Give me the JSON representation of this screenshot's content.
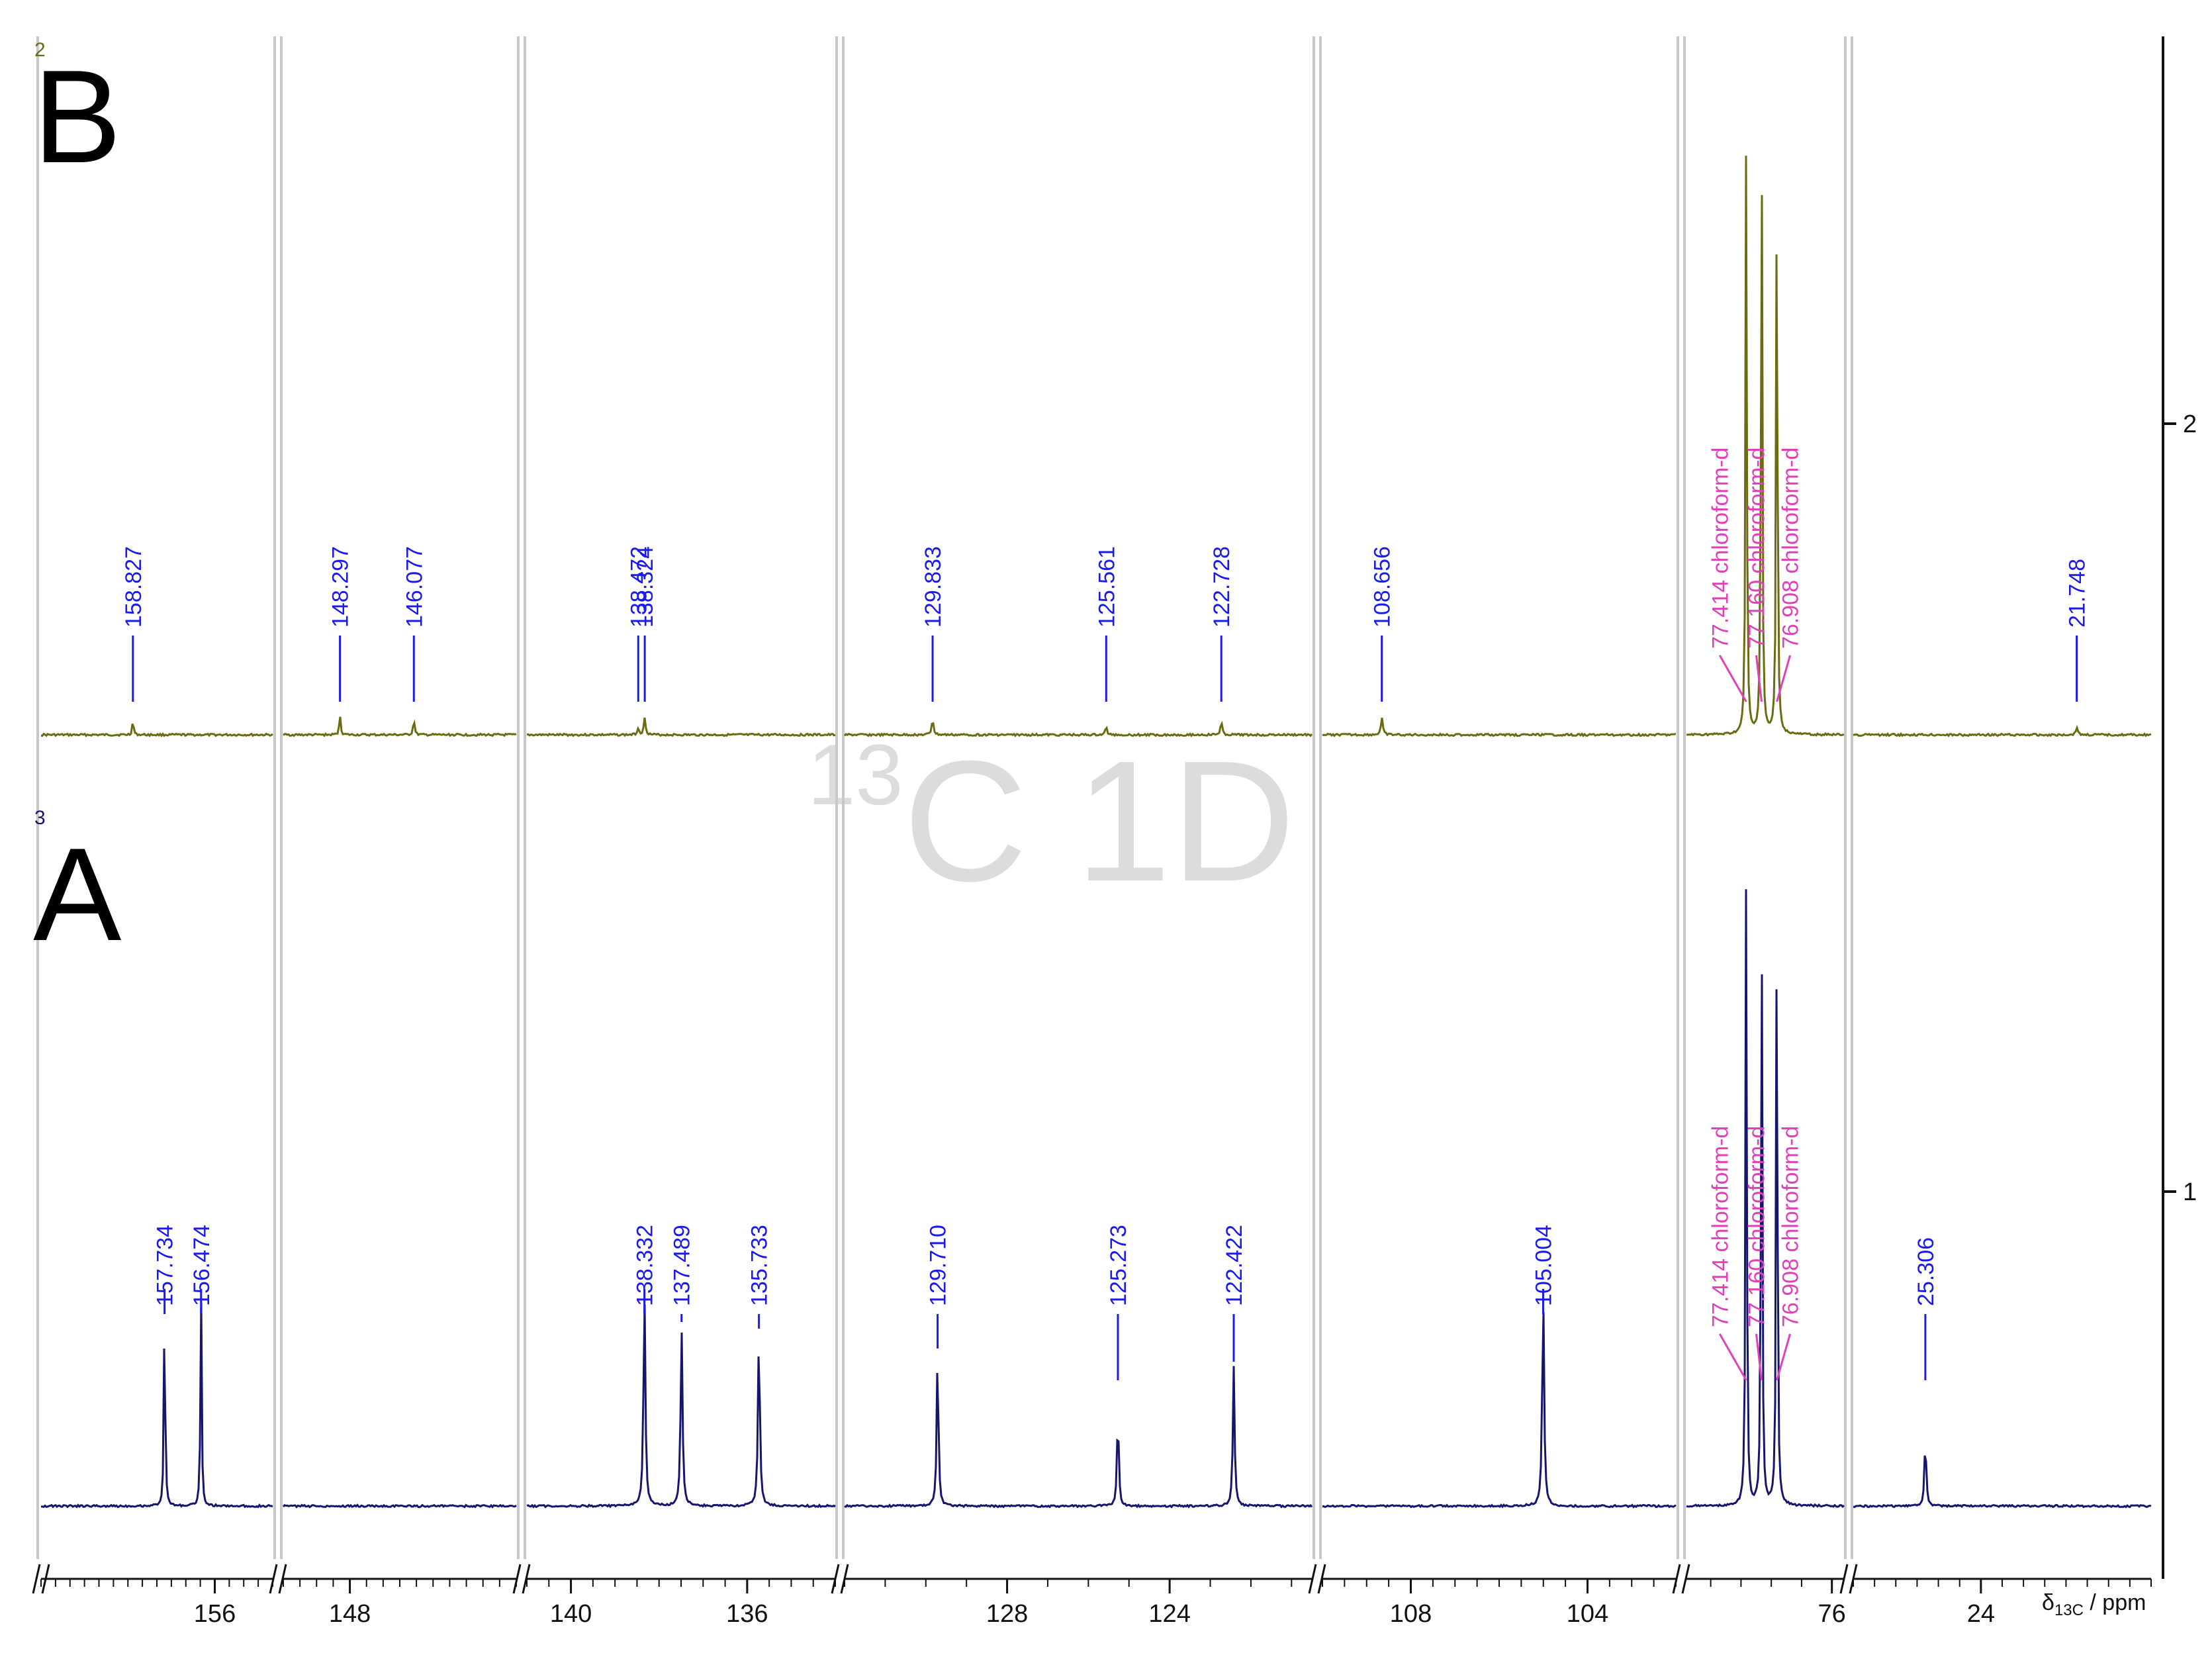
{
  "watermark": "13C 1D",
  "watermark_sup": "13",
  "watermark_main": "C 1D",
  "axis_label": "δ13C / ppm",
  "axis_label_main": "δ",
  "axis_label_sub": "13C",
  "axis_label_unit": " / ppm",
  "right_axis_ticks": [
    {
      "label": "2"
    },
    {
      "label": "1"
    }
  ],
  "colors": {
    "spectrum_B": "#6b6b12",
    "spectrum_A": "#16166e",
    "peak_label": "#1a1aee",
    "solvent_label": "#e040b8",
    "segment_divider": "#c8c8c8",
    "watermark": "#dcdcdc"
  },
  "chart_data": {
    "type": "line",
    "title": "",
    "xlabel": "δ13C / ppm",
    "ylabel": "",
    "x_reversed": true,
    "broken_axis": true,
    "segments": [
      {
        "range": [
          162,
          154
        ],
        "ticks": [
          156
        ]
      },
      {
        "range": [
          150,
          143
        ],
        "ticks": [
          148
        ]
      },
      {
        "range": [
          141,
          134
        ],
        "ticks": [
          140,
          136
        ]
      },
      {
        "range": [
          132,
          120.5
        ],
        "ticks": [
          128,
          124
        ]
      },
      {
        "range": [
          110,
          102
        ],
        "ticks": [
          108,
          104
        ]
      },
      {
        "range": [
          78.4,
          75.8
        ],
        "ticks": [
          76
        ]
      },
      {
        "range": [
          27,
          20
        ],
        "ticks": [
          24
        ]
      }
    ],
    "series": [
      {
        "name": "B",
        "row_number": "2",
        "peaks": [
          {
            "ppm": 158.827,
            "label": "158.827",
            "height": 0.025
          },
          {
            "ppm": 148.297,
            "label": "148.297",
            "height": 0.03
          },
          {
            "ppm": 146.077,
            "label": "146.077",
            "height": 0.025
          },
          {
            "ppm": 138.472,
            "label": "138.472",
            "height": 0.01
          },
          {
            "ppm": 138.324,
            "label": "138.324",
            "height": 0.025
          },
          {
            "ppm": 129.833,
            "label": "129.833",
            "height": 0.025
          },
          {
            "ppm": 125.561,
            "label": "125.561",
            "height": 0.012
          },
          {
            "ppm": 122.728,
            "label": "122.728",
            "height": 0.02
          },
          {
            "ppm": 108.656,
            "label": "108.656",
            "height": 0.025
          },
          {
            "ppm": 77.414,
            "label": "77.414 chloroform-d",
            "height": 0.92,
            "solvent": true
          },
          {
            "ppm": 77.16,
            "label": "77.160 chloroform-d",
            "height": 0.975,
            "solvent": true
          },
          {
            "ppm": 76.908,
            "label": "76.908 chloroform-d",
            "height": 0.92,
            "solvent": true
          },
          {
            "ppm": 21.748,
            "label": "21.748",
            "height": 0.012
          }
        ]
      },
      {
        "name": "A",
        "row_number": "3",
        "peaks": [
          {
            "ppm": 157.734,
            "label": "157.734",
            "height": 0.32
          },
          {
            "ppm": 156.474,
            "label": "156.474",
            "height": 0.32
          },
          {
            "ppm": 138.332,
            "label": "138.332",
            "height": 0.32
          },
          {
            "ppm": 137.489,
            "label": "137.489",
            "height": 0.27
          },
          {
            "ppm": 135.733,
            "label": "135.733",
            "height": 0.26
          },
          {
            "ppm": 129.71,
            "label": "129.710",
            "height": 0.23
          },
          {
            "ppm": 125.273,
            "label": "125.273",
            "height": 0.14
          },
          {
            "ppm": 122.422,
            "label": "122.422",
            "height": 0.21
          },
          {
            "ppm": 105.004,
            "label": "105.004",
            "height": 0.32
          },
          {
            "ppm": 77.414,
            "label": "77.414 chloroform-d",
            "height": 0.98,
            "solvent": true
          },
          {
            "ppm": 77.16,
            "label": "77.160 chloroform-d",
            "height": 0.96,
            "solvent": true
          },
          {
            "ppm": 76.908,
            "label": "76.908 chloroform-d",
            "height": 0.99,
            "solvent": true
          },
          {
            "ppm": 25.306,
            "label": "25.306",
            "height": 0.1
          }
        ]
      }
    ]
  }
}
